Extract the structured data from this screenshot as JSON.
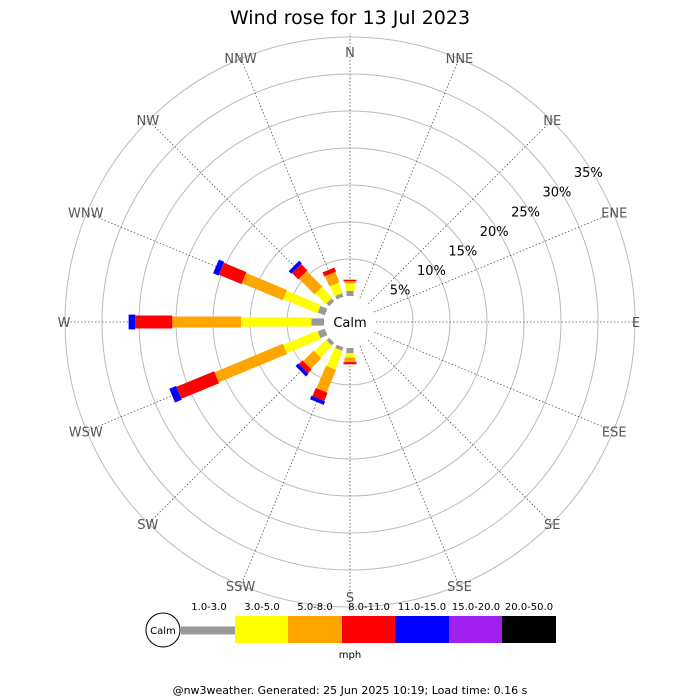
{
  "chart_data": {
    "type": "windrose",
    "title": "Wind rose for 13 Jul 2023",
    "directions": [
      "N",
      "NNE",
      "NE",
      "ENE",
      "E",
      "ESE",
      "SE",
      "SSE",
      "S",
      "SSW",
      "SW",
      "WSW",
      "W",
      "WNW",
      "NW",
      "NNW"
    ],
    "ring_labels": [
      "5%",
      "10%",
      "15%",
      "20%",
      "25%",
      "30%",
      "35%"
    ],
    "ring_values": [
      5,
      10,
      15,
      20,
      25,
      30,
      35
    ],
    "center_label": "Calm",
    "speed_bins": [
      {
        "label": "1.0-3.0",
        "color": "#999999"
      },
      {
        "label": "3.0-5.0",
        "color": "#ffff00"
      },
      {
        "label": "5.0-8.0",
        "color": "#ffa500"
      },
      {
        "label": "8.0-11.0",
        "color": "#ff0000"
      },
      {
        "label": "11.0-15.0",
        "color": "#0000ff"
      },
      {
        "label": "15.0-20.0",
        "color": "#a020f0"
      },
      {
        "label": "20.0-50.0",
        "color": "#000000"
      }
    ],
    "series_pct": {
      "N": [
        0.7,
        1.0,
        0.3,
        0.2,
        0,
        0,
        0
      ],
      "NNE": [
        0,
        0,
        0,
        0,
        0,
        0,
        0
      ],
      "NE": [
        0,
        0,
        0,
        0,
        0,
        0,
        0
      ],
      "ENE": [
        0,
        0,
        0,
        0,
        0,
        0,
        0
      ],
      "E": [
        0,
        0,
        0,
        0,
        0,
        0,
        0
      ],
      "ESE": [
        0,
        0,
        0,
        0,
        0,
        0,
        0
      ],
      "SE": [
        0,
        0,
        0,
        0,
        0,
        0,
        0
      ],
      "SSE": [
        0,
        0,
        0,
        0,
        0,
        0,
        0
      ],
      "S": [
        0.7,
        0.6,
        0.6,
        0.3,
        0,
        0,
        0
      ],
      "SSW": [
        0.5,
        2.7,
        3.3,
        1.2,
        0.5,
        0,
        0
      ],
      "SW": [
        0.5,
        2.2,
        2.0,
        0.7,
        0.5,
        0,
        0
      ],
      "WSW": [
        1.0,
        5.0,
        10.0,
        5.5,
        1.0,
        0,
        0
      ],
      "W": [
        1.7,
        9.5,
        9.3,
        5.0,
        0.9,
        0,
        0
      ],
      "WNW": [
        1.0,
        5.0,
        6.0,
        3.3,
        0.8,
        0,
        0
      ],
      "NW": [
        0.5,
        2.0,
        3.0,
        1.2,
        0.5,
        0,
        0
      ],
      "NNW": [
        0.5,
        1.5,
        1.5,
        0.6,
        0,
        0,
        0
      ]
    },
    "legend_unit": "mph"
  },
  "footer": "@nw3weather. Generated: 25 Jun 2025 10:19; Load time: 0.16 s"
}
